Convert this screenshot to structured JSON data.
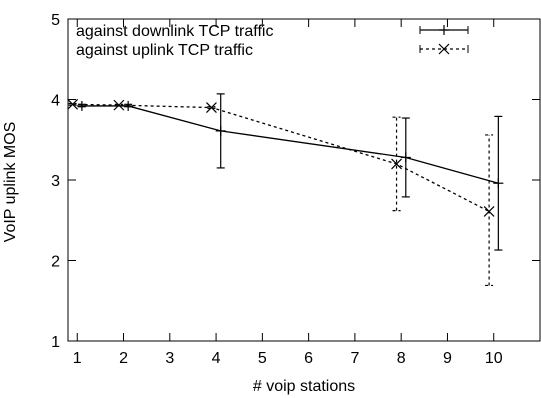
{
  "chart_data": {
    "type": "line",
    "title": "",
    "xlabel": "# voip stations",
    "ylabel": "VoIP uplink MOS",
    "xlim": [
      0.8,
      11
    ],
    "ylim": [
      1,
      5
    ],
    "xticks": [
      1,
      2,
      3,
      4,
      5,
      6,
      7,
      8,
      9,
      10
    ],
    "yticks": [
      1,
      2,
      3,
      4,
      5
    ],
    "grid": false,
    "legend_position": "top-left",
    "series": [
      {
        "name": "against downlink TCP traffic",
        "style": "solid",
        "marker": "plus",
        "x": [
          1.1,
          2.1,
          4.1,
          8.1,
          10.1
        ],
        "y": [
          3.92,
          3.92,
          3.61,
          3.28,
          2.96
        ],
        "err_low": [
          3.91,
          3.91,
          3.15,
          2.79,
          2.13
        ],
        "err_high": [
          3.94,
          3.94,
          4.07,
          3.77,
          3.79
        ]
      },
      {
        "name": "against uplink TCP traffic",
        "style": "dashed",
        "marker": "x",
        "x": [
          0.9,
          1.9,
          3.9,
          7.9,
          9.9
        ],
        "y": [
          3.94,
          3.93,
          3.9,
          3.2,
          2.61
        ],
        "err_low": [
          3.93,
          3.92,
          3.89,
          2.62,
          1.69
        ],
        "err_high": [
          3.95,
          3.94,
          3.91,
          3.78,
          3.56
        ]
      }
    ]
  },
  "colors": {
    "line": "#000000",
    "background": "#ffffff"
  }
}
